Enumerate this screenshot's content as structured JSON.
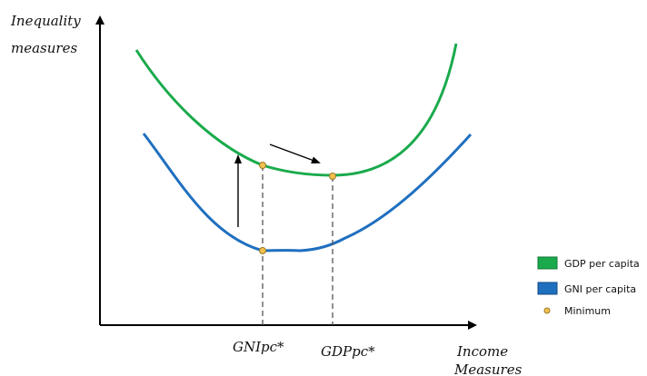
{
  "axes": {
    "y_label_line1": "Inequality",
    "y_label_line2": "measures",
    "x_label_line1": "Income",
    "x_label_line2": "Measures"
  },
  "markers": {
    "gni_star": "GNIpc*",
    "gdp_star": "GDPpc*"
  },
  "legend": {
    "gdp": "GDP per capita",
    "gni": "GNI per capita",
    "minimum": "Minimum"
  },
  "colors": {
    "gdp": "#1aaa4c",
    "gni": "#1f6fbf",
    "minimum_fill": "#f2c14e",
    "minimum_stroke": "#9a7a2a",
    "axis": "#000000",
    "dash": "#555555"
  }
}
